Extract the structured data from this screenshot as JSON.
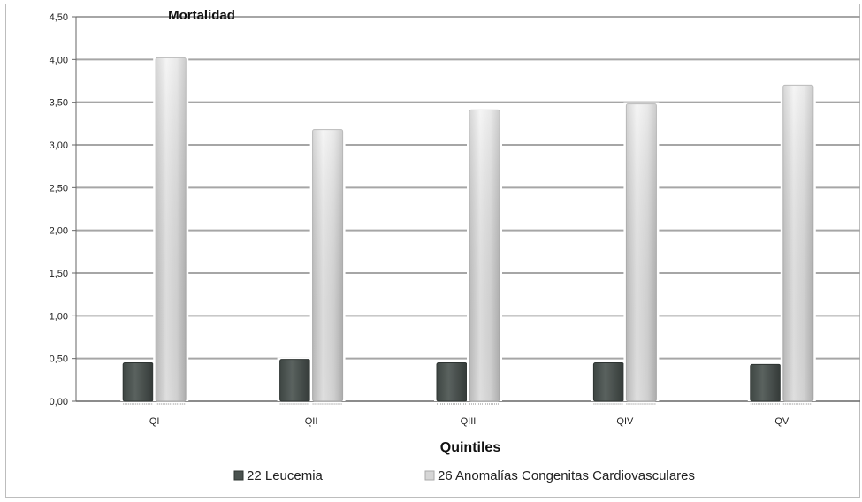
{
  "chart_data": {
    "type": "bar",
    "title": "Mortalidad",
    "xlabel": "Quintiles",
    "ylabel": "",
    "categories": [
      "QI",
      "QII",
      "QIII",
      "QIV",
      "QV"
    ],
    "series": [
      {
        "name": "22 Leucemia",
        "values": [
          0.45,
          0.49,
          0.45,
          0.45,
          0.43
        ],
        "color": "#4a524f"
      },
      {
        "name": "26 Anomalías Congenitas Cardiovasculares",
        "values": [
          4.02,
          3.18,
          3.41,
          3.48,
          3.7
        ],
        "color": "#d8d8d8"
      }
    ],
    "ylim": [
      0,
      4.5
    ],
    "yticks": [
      "0,00",
      "0,50",
      "1,00",
      "1,50",
      "2,00",
      "2,50",
      "3,00",
      "3,50",
      "4,00",
      "4,50"
    ],
    "grid": true,
    "legend_position": "bottom"
  }
}
